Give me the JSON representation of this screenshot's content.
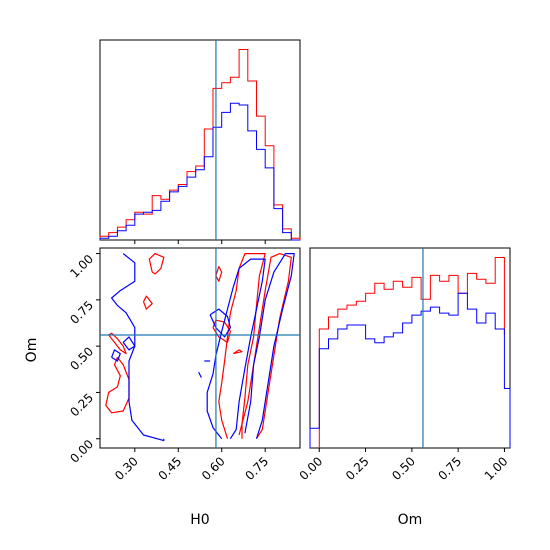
{
  "chart_data": [
    {
      "type": "histogram",
      "panel": "H0 marginal",
      "xlim": [
        0.18,
        0.87
      ],
      "truth_line": 0.58,
      "series": [
        {
          "color": "#ff0000",
          "bin_edges": [
            0.18,
            0.21,
            0.24,
            0.27,
            0.3,
            0.33,
            0.36,
            0.39,
            0.42,
            0.45,
            0.48,
            0.51,
            0.54,
            0.57,
            0.6,
            0.63,
            0.66,
            0.69,
            0.72,
            0.75,
            0.78,
            0.81,
            0.84,
            0.87
          ],
          "counts": [
            2,
            4,
            7,
            11,
            15,
            14,
            24,
            22,
            27,
            30,
            37,
            40,
            60,
            82,
            85,
            88,
            103,
            86,
            67,
            51,
            19,
            6,
            1
          ]
        },
        {
          "color": "#0000ff",
          "bin_edges": [
            0.18,
            0.21,
            0.24,
            0.27,
            0.3,
            0.33,
            0.36,
            0.39,
            0.42,
            0.45,
            0.48,
            0.51,
            0.54,
            0.57,
            0.6,
            0.63,
            0.66,
            0.69,
            0.72,
            0.75,
            0.78,
            0.81,
            0.84,
            0.87
          ],
          "counts": [
            1,
            2,
            5,
            8,
            14,
            15,
            16,
            21,
            26,
            29,
            34,
            38,
            45,
            61,
            69,
            74,
            73,
            59,
            49,
            39,
            17,
            4,
            0
          ]
        }
      ]
    },
    {
      "type": "histogram",
      "panel": "Om marginal",
      "xlabel": "Om",
      "xlim": [
        -0.05,
        1.03
      ],
      "xticks": [
        "0.00",
        "0.25",
        "0.50",
        "0.75",
        "1.00"
      ],
      "truth_line": 0.56,
      "series": [
        {
          "color": "#ff0000",
          "bin_edges": [
            0.0,
            0.05,
            0.1,
            0.15,
            0.2,
            0.25,
            0.3,
            0.35,
            0.4,
            0.45,
            0.5,
            0.55,
            0.6,
            0.65,
            0.7,
            0.75,
            0.8,
            0.85,
            0.9,
            0.95,
            1.0
          ],
          "counts": [
            60,
            66,
            70,
            72,
            74,
            78,
            83,
            80,
            84,
            81,
            86,
            75,
            87,
            84,
            87,
            78,
            88,
            85,
            83,
            96,
            57
          ]
        },
        {
          "color": "#0000ff",
          "bin_edges": [
            -0.05,
            0.0,
            0.05,
            0.1,
            0.15,
            0.2,
            0.25,
            0.3,
            0.35,
            0.4,
            0.45,
            0.5,
            0.55,
            0.6,
            0.65,
            0.7,
            0.75,
            0.8,
            0.85,
            0.9,
            0.95,
            1.0,
            1.03
          ],
          "counts": [
            10,
            50,
            55,
            60,
            62,
            62,
            55,
            53,
            56,
            58,
            63,
            67,
            69,
            71,
            68,
            67,
            78,
            70,
            63,
            68,
            60,
            30
          ]
        }
      ]
    },
    {
      "type": "contour",
      "panel": "H0 vs Om",
      "xlabel": "H0",
      "ylabel": "Om",
      "xlim": [
        0.18,
        0.87
      ],
      "ylim": [
        -0.05,
        1.03
      ],
      "xticks": [
        "0.30",
        "0.45",
        "0.60",
        "0.75"
      ],
      "yticks": [
        "0.00",
        "0.25",
        "0.50",
        "0.75",
        "1.00"
      ],
      "truth_lines": {
        "x": 0.58,
        "y": 0.56
      },
      "contours": [
        {
          "color": "#ff0000",
          "points": [
            [
              0.62,
              0.0
            ],
            [
              0.6,
              0.1
            ],
            [
              0.59,
              0.2
            ],
            [
              0.6,
              0.3
            ],
            [
              0.61,
              0.42
            ],
            [
              0.62,
              0.55
            ],
            [
              0.63,
              0.68
            ],
            [
              0.65,
              0.8
            ],
            [
              0.66,
              0.92
            ],
            [
              0.68,
              1.0
            ],
            [
              0.75,
              1.0
            ],
            [
              0.73,
              0.88
            ],
            [
              0.72,
              0.72
            ],
            [
              0.71,
              0.55
            ],
            [
              0.69,
              0.4
            ],
            [
              0.68,
              0.22
            ],
            [
              0.67,
              0.08
            ],
            [
              0.67,
              0.0
            ]
          ]
        },
        {
          "color": "#ff0000",
          "points": [
            [
              0.66,
              0.02
            ],
            [
              0.69,
              0.2
            ],
            [
              0.71,
              0.4
            ],
            [
              0.73,
              0.6
            ],
            [
              0.75,
              0.8
            ],
            [
              0.77,
              0.98
            ],
            [
              0.8,
              1.0
            ],
            [
              0.84,
              0.98
            ],
            [
              0.83,
              0.85
            ],
            [
              0.8,
              0.65
            ],
            [
              0.78,
              0.45
            ],
            [
              0.76,
              0.25
            ],
            [
              0.74,
              0.05
            ],
            [
              0.72,
              0.0
            ]
          ]
        },
        {
          "color": "#ff0000",
          "points": [
            [
              0.24,
              0.44
            ],
            [
              0.26,
              0.4
            ],
            [
              0.28,
              0.32
            ],
            [
              0.28,
              0.22
            ],
            [
              0.26,
              0.15
            ],
            [
              0.22,
              0.14
            ],
            [
              0.2,
              0.18
            ],
            [
              0.21,
              0.25
            ],
            [
              0.24,
              0.28
            ],
            [
              0.25,
              0.34
            ],
            [
              0.23,
              0.4
            ],
            [
              0.24,
              0.44
            ]
          ]
        },
        {
          "color": "#ff0000",
          "points": [
            [
              0.21,
              0.56
            ],
            [
              0.23,
              0.52
            ],
            [
              0.25,
              0.48
            ],
            [
              0.27,
              0.46
            ],
            [
              0.26,
              0.5
            ],
            [
              0.24,
              0.54
            ],
            [
              0.22,
              0.57
            ],
            [
              0.21,
              0.56
            ]
          ]
        },
        {
          "color": "#ff0000",
          "points": [
            [
              0.36,
              0.9
            ],
            [
              0.35,
              0.97
            ],
            [
              0.37,
              1.0
            ],
            [
              0.4,
              0.98
            ],
            [
              0.39,
              0.92
            ],
            [
              0.37,
              0.89
            ],
            [
              0.36,
              0.9
            ]
          ]
        },
        {
          "color": "#ff0000",
          "points": [
            [
              0.33,
              0.74
            ],
            [
              0.34,
              0.7
            ],
            [
              0.36,
              0.73
            ],
            [
              0.34,
              0.77
            ],
            [
              0.33,
              0.74
            ]
          ]
        },
        {
          "color": "#ff0000",
          "points": [
            [
              0.57,
              0.6
            ],
            [
              0.59,
              0.55
            ],
            [
              0.62,
              0.52
            ],
            [
              0.63,
              0.58
            ],
            [
              0.61,
              0.63
            ],
            [
              0.58,
              0.64
            ],
            [
              0.57,
              0.6
            ]
          ]
        },
        {
          "color": "#ff0000",
          "points": [
            [
              0.58,
              0.88
            ],
            [
              0.59,
              0.85
            ],
            [
              0.6,
              0.9
            ],
            [
              0.59,
              0.93
            ],
            [
              0.58,
              0.88
            ]
          ]
        },
        {
          "color": "#ff0000",
          "points": [
            [
              0.64,
              0.46
            ],
            [
              0.67,
              0.47
            ],
            [
              0.66,
              0.48
            ],
            [
              0.64,
              0.46
            ]
          ]
        },
        {
          "color": "#0000ff",
          "points": [
            [
              0.6,
              0.0
            ],
            [
              0.57,
              0.06
            ],
            [
              0.55,
              0.15
            ],
            [
              0.55,
              0.25
            ],
            [
              0.57,
              0.35
            ],
            [
              0.58,
              0.45
            ],
            [
              0.6,
              0.58
            ],
            [
              0.62,
              0.7
            ],
            [
              0.64,
              0.82
            ],
            [
              0.66,
              0.92
            ],
            [
              0.7,
              0.97
            ],
            [
              0.75,
              0.97
            ],
            [
              0.74,
              0.85
            ],
            [
              0.72,
              0.7
            ],
            [
              0.7,
              0.55
            ],
            [
              0.68,
              0.38
            ],
            [
              0.66,
              0.2
            ],
            [
              0.65,
              0.05
            ],
            [
              0.63,
              0.0
            ]
          ]
        },
        {
          "color": "#0000ff",
          "points": [
            [
              0.68,
              0.03
            ],
            [
              0.7,
              0.2
            ],
            [
              0.71,
              0.4
            ],
            [
              0.73,
              0.55
            ],
            [
              0.75,
              0.75
            ],
            [
              0.78,
              0.9
            ],
            [
              0.82,
              1.0
            ],
            [
              0.85,
              1.0
            ],
            [
              0.84,
              0.88
            ],
            [
              0.81,
              0.7
            ],
            [
              0.78,
              0.5
            ],
            [
              0.76,
              0.3
            ],
            [
              0.74,
              0.1
            ],
            [
              0.72,
              0.0
            ]
          ]
        },
        {
          "color": "#0000ff",
          "points": [
            [
              0.26,
              1.0
            ],
            [
              0.3,
              0.95
            ],
            [
              0.3,
              0.85
            ],
            [
              0.25,
              0.8
            ],
            [
              0.22,
              0.76
            ],
            [
              0.24,
              0.72
            ],
            [
              0.27,
              0.68
            ],
            [
              0.3,
              0.6
            ],
            [
              0.3,
              0.5
            ],
            [
              0.28,
              0.42
            ],
            [
              0.28,
              0.32
            ],
            [
              0.28,
              0.2
            ],
            [
              0.29,
              0.1
            ],
            [
              0.33,
              0.02
            ],
            [
              0.4,
              -0.01
            ],
            [
              0.4,
              0.0
            ]
          ]
        },
        {
          "color": "#0000ff",
          "points": [
            [
              0.56,
              0.67
            ],
            [
              0.58,
              0.6
            ],
            [
              0.61,
              0.55
            ],
            [
              0.63,
              0.6
            ],
            [
              0.62,
              0.66
            ],
            [
              0.59,
              0.7
            ],
            [
              0.56,
              0.67
            ]
          ]
        },
        {
          "color": "#0000ff",
          "points": [
            [
              0.22,
              0.44
            ],
            [
              0.24,
              0.42
            ],
            [
              0.25,
              0.46
            ],
            [
              0.23,
              0.48
            ],
            [
              0.22,
              0.44
            ]
          ]
        },
        {
          "color": "#0000ff",
          "points": [
            [
              0.26,
              0.52
            ],
            [
              0.28,
              0.48
            ],
            [
              0.3,
              0.5
            ],
            [
              0.28,
              0.55
            ],
            [
              0.26,
              0.52
            ]
          ]
        },
        {
          "color": "#0000ff",
          "points": [
            [
              0.52,
              0.36
            ],
            [
              0.53,
              0.33
            ]
          ]
        },
        {
          "color": "#0000ff",
          "points": [
            [
              0.54,
              0.42
            ],
            [
              0.56,
              0.42
            ]
          ]
        }
      ]
    }
  ]
}
